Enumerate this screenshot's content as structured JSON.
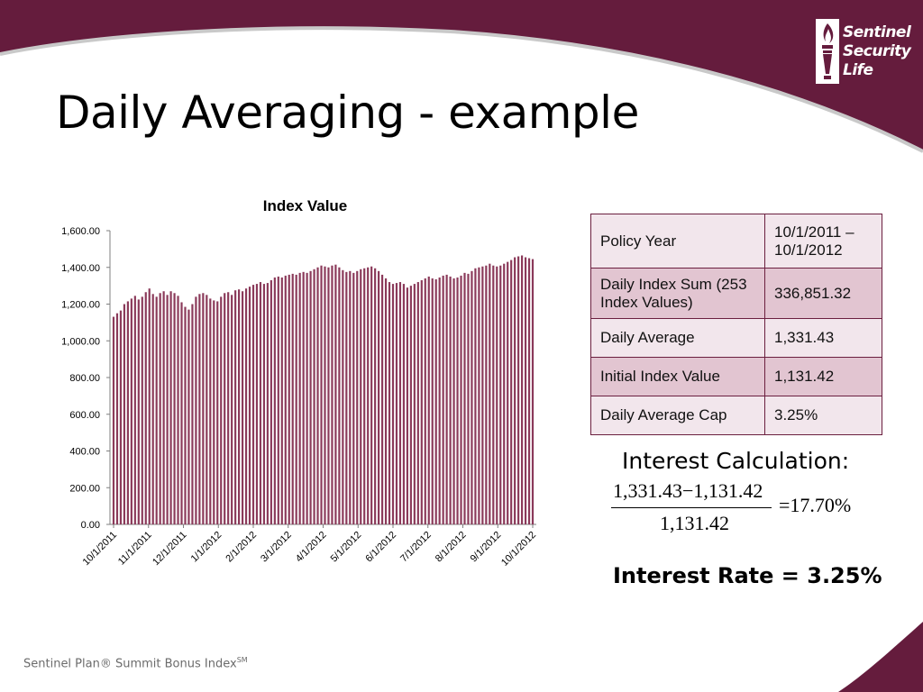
{
  "slide": {
    "title": "Daily Averaging - example",
    "brand_color": "#651c3d",
    "footer": "Sentinel Plan® Summit Bonus Index",
    "footer_mark": "SM"
  },
  "logo": {
    "line1": "Sentinel",
    "line2": "Security",
    "line3": "Life",
    "icon": "torch-icon"
  },
  "chart_data": {
    "type": "bar",
    "title": "Index Value",
    "xlabel": "",
    "ylabel": "",
    "ylim": [
      0,
      1600
    ],
    "y_ticks": [
      "0.00",
      "200.00",
      "400.00",
      "600.00",
      "800.00",
      "1,000.00",
      "1,200.00",
      "1,400.00",
      "1,600.00"
    ],
    "x_ticks": [
      "10/1/2011",
      "11/1/2011",
      "12/1/2011",
      "1/1/2012",
      "2/1/2012",
      "3/1/2012",
      "4/1/2012",
      "5/1/2012",
      "6/1/2012",
      "7/1/2012",
      "8/1/2012",
      "9/1/2012",
      "10/1/2012"
    ],
    "bar_color": "#8b3a5a",
    "grid": false,
    "legend": "none",
    "series": [
      {
        "values": [
          1131,
          1150,
          1165,
          1200,
          1215,
          1230,
          1245,
          1225,
          1240,
          1265,
          1285,
          1255,
          1240,
          1260,
          1270,
          1250,
          1270,
          1260,
          1245,
          1210,
          1185,
          1170,
          1200,
          1240,
          1255,
          1260,
          1250,
          1230,
          1220,
          1215,
          1240,
          1260,
          1265,
          1250,
          1275,
          1280,
          1270,
          1285,
          1295,
          1305,
          1310,
          1320,
          1310,
          1315,
          1330,
          1345,
          1350,
          1345,
          1355,
          1360,
          1365,
          1360,
          1370,
          1375,
          1370,
          1380,
          1390,
          1400,
          1410,
          1405,
          1400,
          1410,
          1415,
          1400,
          1385,
          1375,
          1380,
          1370,
          1380,
          1390,
          1395,
          1400,
          1405,
          1395,
          1380,
          1360,
          1340,
          1320,
          1310,
          1315,
          1320,
          1310,
          1290,
          1300,
          1310,
          1320,
          1330,
          1340,
          1350,
          1340,
          1335,
          1345,
          1355,
          1360,
          1350,
          1340,
          1345,
          1355,
          1370,
          1365,
          1380,
          1395,
          1400,
          1405,
          1410,
          1420,
          1410,
          1405,
          1410,
          1420,
          1430,
          1440,
          1455,
          1460,
          1465,
          1455,
          1450,
          1445
        ]
      }
    ]
  },
  "table": {
    "rows": [
      {
        "label": "Policy Year",
        "value": "10/1/2011 – 10/1/2012"
      },
      {
        "label": "Daily Index Sum (253 Index Values)",
        "value": "336,851.32"
      },
      {
        "label": "Daily Average",
        "value": "1,331.43"
      },
      {
        "label": "Initial Index Value",
        "value": "1,131.42"
      },
      {
        "label": "Daily Average Cap",
        "value": "3.25%"
      }
    ]
  },
  "calculation": {
    "label": "Interest Calculation:",
    "numerator": "1,331.43−1,131.42",
    "denominator": "1,131.42",
    "result": "=17.70%",
    "rate_text": "Interest Rate = 3.25%"
  }
}
